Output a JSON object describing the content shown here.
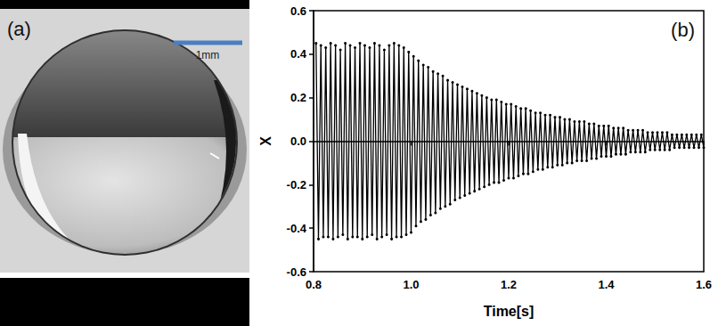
{
  "panel_a": {
    "label": "(a)",
    "scale_bar": "1mm"
  },
  "chart_data": {
    "type": "line",
    "annotation": "(b)",
    "x_label": "Time[s]",
    "y_label": "X",
    "color": "#000000",
    "marker": "circle",
    "line_style": "solid",
    "grid": false,
    "xlim": [
      0.8,
      1.6
    ],
    "xticks": [
      0.8,
      {
        "value": 1,
        "label": "1.0"
      },
      1.2,
      1.4,
      1.6
    ],
    "ylim": [
      -0.6,
      0.6
    ],
    "yticks": [
      -0.6,
      -0.4,
      -0.2,
      {
        "value": 0,
        "label": "0.0"
      },
      0.2,
      0.4,
      0.6
    ],
    "x": [
      0.805,
      0.81,
      0.815,
      0.82,
      0.825,
      0.83,
      0.835,
      0.84,
      0.845,
      0.85,
      0.855,
      0.86,
      0.865,
      0.87,
      0.875,
      0.88,
      0.885,
      0.89,
      0.895,
      0.9,
      0.905,
      0.91,
      0.915,
      0.92,
      0.925,
      0.93,
      0.935,
      0.94,
      0.945,
      0.95,
      0.955,
      0.96,
      0.965,
      0.97,
      0.975,
      0.98,
      0.985,
      0.99,
      0.995,
      1.0,
      1.005,
      1.01,
      1.015,
      1.02,
      1.025,
      1.03,
      1.035,
      1.04,
      1.045,
      1.05,
      1.055,
      1.06,
      1.065,
      1.07,
      1.075,
      1.08,
      1.085,
      1.09,
      1.095,
      1.1,
      1.105,
      1.11,
      1.115,
      1.12,
      1.125,
      1.13,
      1.135,
      1.14,
      1.145,
      1.15,
      1.155,
      1.16,
      1.165,
      1.17,
      1.175,
      1.18,
      1.185,
      1.19,
      1.195,
      1.2,
      1.205,
      1.21,
      1.215,
      1.22,
      1.225,
      1.23,
      1.235,
      1.24,
      1.245,
      1.25,
      1.255,
      1.26,
      1.265,
      1.27,
      1.275,
      1.28,
      1.285,
      1.29,
      1.295,
      1.3,
      1.305,
      1.31,
      1.315,
      1.32,
      1.325,
      1.33,
      1.335,
      1.34,
      1.345,
      1.35,
      1.355,
      1.36,
      1.365,
      1.37,
      1.375,
      1.38,
      1.385,
      1.39,
      1.395,
      1.4,
      1.405,
      1.41,
      1.415,
      1.42,
      1.425,
      1.43,
      1.435,
      1.44,
      1.445,
      1.45,
      1.455,
      1.46,
      1.465,
      1.47,
      1.475,
      1.48,
      1.485,
      1.49,
      1.495,
      1.5,
      1.505,
      1.51,
      1.515,
      1.52,
      1.525,
      1.53,
      1.535,
      1.54,
      1.545,
      1.55,
      1.555,
      1.56,
      1.565,
      1.57,
      1.575,
      1.58,
      1.585,
      1.59,
      1.595,
      1.6
    ],
    "values": [
      0.45,
      -0.45,
      0.44,
      -0.44,
      0.43,
      -0.44,
      0.45,
      -0.45,
      0.44,
      -0.44,
      0.42,
      -0.43,
      0.45,
      -0.45,
      0.44,
      -0.44,
      0.43,
      -0.44,
      0.45,
      -0.45,
      0.44,
      -0.44,
      0.43,
      -0.43,
      0.45,
      -0.45,
      0.44,
      -0.44,
      0.42,
      -0.43,
      0.44,
      -0.45,
      0.45,
      -0.44,
      0.44,
      -0.44,
      0.43,
      -0.43,
      0.41,
      -0.42,
      0.39,
      -0.39,
      0.37,
      -0.37,
      0.35,
      -0.36,
      0.34,
      -0.34,
      0.32,
      -0.33,
      0.31,
      -0.31,
      0.3,
      -0.3,
      0.28,
      -0.29,
      0.27,
      -0.27,
      0.26,
      -0.26,
      0.25,
      -0.25,
      0.24,
      -0.24,
      0.23,
      -0.23,
      0.22,
      -0.22,
      0.21,
      -0.21,
      0.2,
      -0.2,
      0.19,
      -0.19,
      0.19,
      -0.19,
      0.18,
      -0.18,
      0.17,
      -0.17,
      0.17,
      -0.17,
      0.16,
      -0.16,
      0.15,
      -0.15,
      0.15,
      -0.15,
      0.14,
      -0.14,
      0.13,
      -0.13,
      0.13,
      -0.13,
      0.12,
      -0.12,
      0.12,
      -0.12,
      0.11,
      -0.11,
      0.11,
      -0.11,
      0.1,
      -0.1,
      0.1,
      -0.1,
      0.09,
      -0.09,
      0.09,
      -0.09,
      0.09,
      -0.09,
      0.08,
      -0.08,
      0.08,
      -0.08,
      0.07,
      -0.07,
      0.07,
      -0.07,
      0.07,
      -0.07,
      0.06,
      -0.06,
      0.06,
      -0.06,
      0.06,
      -0.06,
      0.05,
      -0.05,
      0.05,
      -0.05,
      0.05,
      -0.05,
      0.05,
      -0.05,
      0.04,
      -0.04,
      0.04,
      -0.04,
      0.04,
      -0.04,
      0.04,
      -0.04,
      0.04,
      -0.04,
      0.03,
      -0.03,
      0.03,
      -0.03,
      0.03,
      -0.03,
      0.03,
      -0.03,
      0.03,
      -0.03,
      0.03,
      -0.03,
      0.03,
      -0.03
    ]
  }
}
